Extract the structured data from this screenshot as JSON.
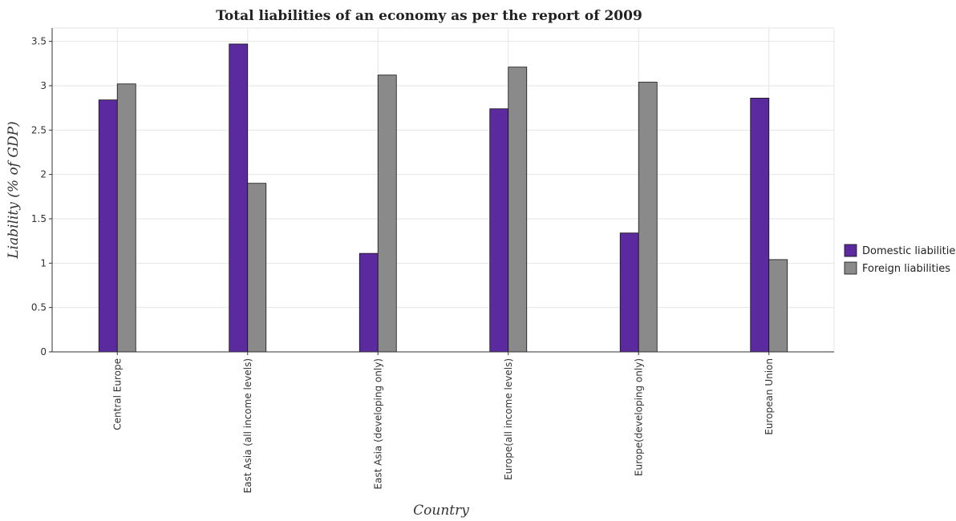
{
  "chart_data": {
    "type": "bar",
    "title": "Total liabilities of an economy as per the report of 2009",
    "xlabel": "Country",
    "ylabel": "Liability (% of GDP)",
    "categories": [
      "Central Europe",
      "East Asia (all income levels)",
      "East Asia (developing only)",
      "Europe(all income levels)",
      "Europe(developing only)",
      "European Union"
    ],
    "series": [
      {
        "name": "Domestic liabilities",
        "color": "#5b2a9e",
        "values": [
          2.84,
          3.47,
          1.11,
          2.74,
          1.34,
          2.86
        ]
      },
      {
        "name": "Foreign liabilities",
        "color": "#8a8a8a",
        "values": [
          3.02,
          1.9,
          3.12,
          3.21,
          3.04,
          1.04
        ]
      }
    ],
    "ylim": [
      0,
      3.65
    ],
    "yticks": [
      0,
      0.5,
      1,
      1.5,
      2,
      2.5,
      3,
      3.5
    ],
    "ytick_labels": [
      "0",
      "0.5",
      "1",
      "1.5",
      "2",
      "2.5",
      "3",
      "3.5"
    ],
    "grid": true,
    "legend_position": "right"
  }
}
